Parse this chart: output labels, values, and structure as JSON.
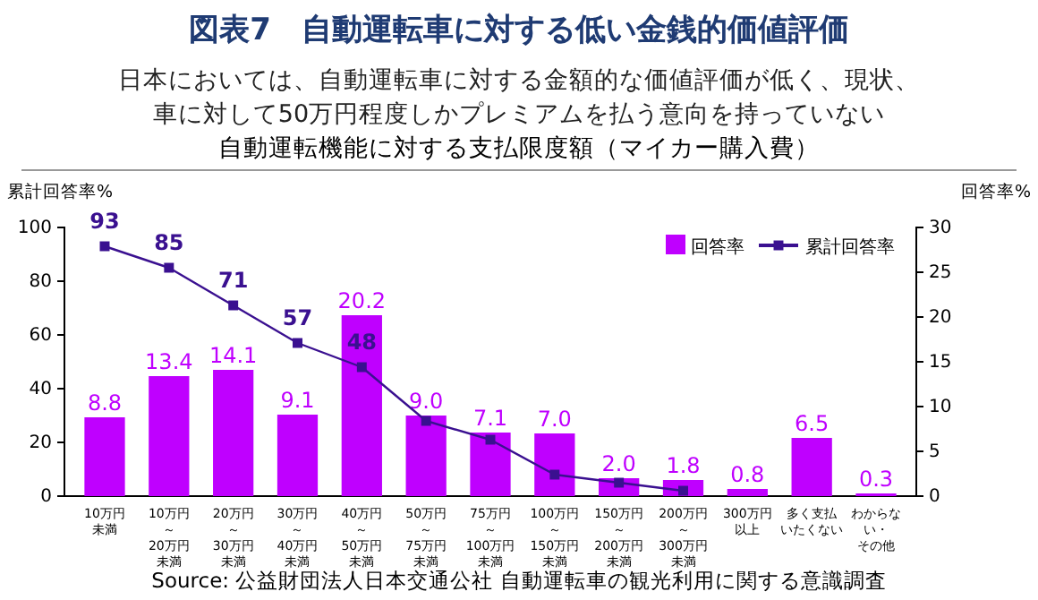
{
  "chart_data": {
    "type": "bar",
    "title": "図表7　自動運転車に対する低い金銭的価値評価",
    "subtitle": "日本においては、自動運転車に対する金額的な価値評価が低く、現状、車に対して50万円程度しかプレミアムを払う意向を持っていない",
    "ylabel": "累計回答率%",
    "y2label": "回答率%",
    "categories": [
      "10万円未満",
      "10万円～20万円未満",
      "20万円～30万円未満",
      "30万円～40万円未満",
      "40万円～50万円未満",
      "50万円～75万円未満",
      "75万円～100万円未満",
      "100万円～150万円未満",
      "150万円～200万円未満",
      "200万円～300万円未満",
      "300万円以上",
      "多く支払いたくない",
      "わからない・その他"
    ],
    "series": [
      {
        "name": "回答率",
        "axis": "y2",
        "color": "#bf00ff",
        "values": [
          8.8,
          13.4,
          14.1,
          9.1,
          20.2,
          9.0,
          7.1,
          7.0,
          2.0,
          1.8,
          0.8,
          6.5,
          0.3
        ],
        "value_labels": [
          "8.8",
          "13.4",
          "14.1",
          "9.1",
          "20.2",
          "9.0",
          "7.1",
          "7.0",
          "2.0",
          "1.8",
          "0.8",
          "6.5",
          "0.3"
        ]
      },
      {
        "name": "累計回答率",
        "type": "line",
        "color": "#3a1090",
        "values": [
          93,
          85,
          71,
          57,
          48,
          28,
          21,
          8,
          5,
          2,
          null,
          null,
          null
        ],
        "value_labels": [
          "93",
          "85",
          "71",
          "57",
          "48",
          null,
          null,
          null,
          null,
          null,
          null,
          null,
          null
        ]
      }
    ],
    "ylim": [
      0,
      100
    ],
    "yticks": [
      0,
      20,
      40,
      60,
      80,
      100
    ],
    "y2lim": [
      0,
      30
    ],
    "y2ticks": [
      0,
      5,
      10,
      15,
      20,
      25,
      30
    ],
    "marker": "square",
    "legend": "top right",
    "grid": false,
    "annotations": [
      "自動運転機能に対する支払限度額（マイカー購入費）",
      "Source: 公益財団法人日本交通公社 自動運転車の観光利用に関する意識調査"
    ]
  }
}
